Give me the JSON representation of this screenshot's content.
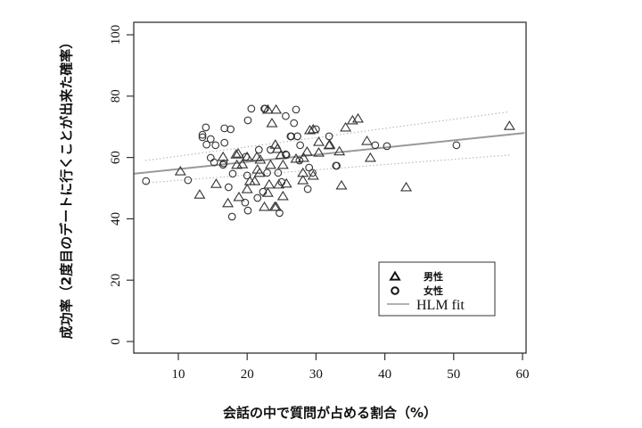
{
  "chart_data": {
    "type": "scatter",
    "title": "",
    "xlabel": "会話の中で質問が占める割合（%）",
    "ylabel": "成功率（2度目のデートに行くことが出来た確率）",
    "xlim": [
      3.5,
      60.3
    ],
    "ylim": [
      -3.8,
      104
    ],
    "xticks": [
      10,
      20,
      30,
      40,
      50,
      60
    ],
    "yticks": [
      0,
      20,
      40,
      60,
      80,
      100
    ],
    "grid": false,
    "legend_position": "bottom-right inside",
    "legend": [
      {
        "label": "男性",
        "marker": "triangle"
      },
      {
        "label": "女性",
        "marker": "circle"
      },
      {
        "label": "HLM fit",
        "marker": "line"
      }
    ],
    "series": [
      {
        "name": "男性",
        "marker": "triangle",
        "points": [
          [
            10.3,
            55.5
          ],
          [
            13.1,
            47.9
          ],
          [
            15.5,
            51.4
          ],
          [
            16.5,
            60.2
          ],
          [
            17.2,
            45.1
          ],
          [
            18.4,
            61.0
          ],
          [
            18.5,
            57.6
          ],
          [
            18.7,
            61.3
          ],
          [
            18.8,
            47.1
          ],
          [
            19.3,
            57.8
          ],
          [
            20.0,
            49.7
          ],
          [
            20.0,
            60.2
          ],
          [
            21.4,
            60.2
          ],
          [
            21.1,
            52.3
          ],
          [
            20.4,
            52.3
          ],
          [
            21.5,
            56.1
          ],
          [
            21.8,
            55.0
          ],
          [
            21.9,
            59.3
          ],
          [
            22.5,
            43.9
          ],
          [
            23.0,
            48.5
          ],
          [
            23.2,
            51.2
          ],
          [
            23.4,
            57.6
          ],
          [
            23.6,
            71.2
          ],
          [
            23.0,
            75.6
          ],
          [
            24.2,
            75.6
          ],
          [
            24.1,
            64.2
          ],
          [
            24.4,
            62.8
          ],
          [
            24.2,
            43.9
          ],
          [
            24.6,
            51.2
          ],
          [
            24.9,
            60.8
          ],
          [
            25.2,
            57.6
          ],
          [
            25.2,
            47.4
          ],
          [
            25.7,
            51.5
          ],
          [
            27.1,
            59.6
          ],
          [
            28.1,
            55.0
          ],
          [
            28.1,
            52.6
          ],
          [
            28.2,
            59.9
          ],
          [
            28.7,
            61.9
          ],
          [
            29.1,
            68.9
          ],
          [
            29.6,
            69.2
          ],
          [
            29.6,
            54.1
          ],
          [
            30.4,
            65.1
          ],
          [
            30.4,
            61.6
          ],
          [
            31.9,
            64.0
          ],
          [
            32.0,
            64.2
          ],
          [
            33.4,
            62.0
          ],
          [
            33.7,
            50.9
          ],
          [
            34.3,
            69.8
          ],
          [
            35.3,
            72.1
          ],
          [
            36.1,
            72.7
          ],
          [
            37.4,
            65.4
          ],
          [
            37.9,
            59.9
          ],
          [
            43.1,
            50.3
          ],
          [
            58.1,
            70.3
          ],
          [
            24.0,
            43.9
          ]
        ]
      },
      {
        "name": "女性",
        "marker": "circle",
        "points": [
          [
            5.3,
            52.3
          ],
          [
            11.4,
            52.6
          ],
          [
            13.5,
            67.4
          ],
          [
            13.5,
            66.6
          ],
          [
            14.0,
            69.8
          ],
          [
            14.1,
            64.2
          ],
          [
            14.7,
            66.0
          ],
          [
            14.7,
            59.9
          ],
          [
            15.2,
            58.4
          ],
          [
            15.4,
            64.0
          ],
          [
            16.5,
            57.6
          ],
          [
            16.6,
            58.1
          ],
          [
            16.7,
            69.5
          ],
          [
            16.7,
            64.8
          ],
          [
            17.3,
            50.3
          ],
          [
            17.6,
            69.2
          ],
          [
            17.8,
            40.7
          ],
          [
            17.9,
            54.7
          ],
          [
            19.7,
            45.3
          ],
          [
            19.8,
            60.2
          ],
          [
            20.0,
            54.1
          ],
          [
            20.1,
            72.1
          ],
          [
            20.1,
            42.7
          ],
          [
            20.6,
            75.9
          ],
          [
            21.5,
            46.8
          ],
          [
            21.7,
            62.5
          ],
          [
            22.3,
            48.8
          ],
          [
            22.5,
            75.9
          ],
          [
            22.6,
            75.9
          ],
          [
            22.9,
            55.0
          ],
          [
            23.4,
            62.5
          ],
          [
            24.5,
            55.0
          ],
          [
            24.7,
            41.9
          ],
          [
            25.0,
            52.0
          ],
          [
            25.6,
            73.5
          ],
          [
            25.7,
            60.8
          ],
          [
            25.6,
            61.0
          ],
          [
            26.3,
            66.9
          ],
          [
            26.4,
            66.9
          ],
          [
            26.8,
            71.2
          ],
          [
            27.1,
            75.6
          ],
          [
            27.3,
            66.9
          ],
          [
            27.6,
            59.0
          ],
          [
            27.7,
            64.0
          ],
          [
            28.8,
            49.7
          ],
          [
            29.0,
            56.7
          ],
          [
            29.5,
            55.0
          ],
          [
            30.0,
            69.2
          ],
          [
            31.9,
            66.9
          ],
          [
            32.9,
            57.3
          ],
          [
            33.0,
            57.3
          ],
          [
            38.6,
            64.0
          ],
          [
            40.3,
            63.7
          ],
          [
            50.4,
            64.0
          ]
        ]
      }
    ],
    "fit": {
      "name": "HLM fit",
      "line": {
        "x": [
          3.5,
          60.3
        ],
        "y": [
          54.7,
          68.0
        ]
      },
      "ci_upper": {
        "x": [
          5.2,
          58.1
        ],
        "y": [
          59.0,
          74.9
        ]
      },
      "ci_lower": {
        "x": [
          5.2,
          58.1
        ],
        "y": [
          51.7,
          60.8
        ]
      }
    },
    "colors": {
      "points": "#333333",
      "fit_line": "#999999",
      "ci_line": "#bbbbbb",
      "frame": "#333333"
    }
  },
  "labels": {
    "ylabel": "成功率（2度目のデートに行くことが出来た確率）",
    "xlabel": "会話の中で質問が占める割合（%）"
  }
}
